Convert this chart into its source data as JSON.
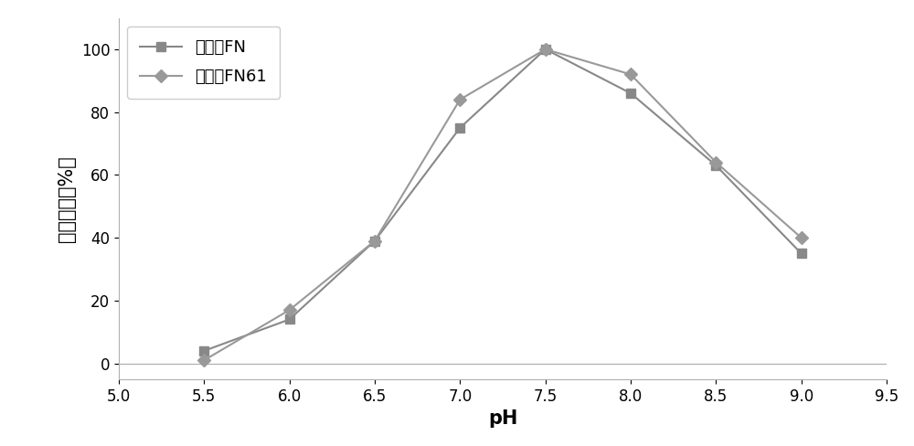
{
  "x": [
    5.5,
    6.0,
    6.5,
    7.0,
    7.5,
    8.0,
    8.5,
    9.0
  ],
  "fn_y": [
    4,
    14,
    39,
    75,
    100,
    86,
    63,
    35
  ],
  "fn61_y": [
    1,
    17,
    39,
    84,
    100,
    92,
    64,
    40
  ],
  "fn_label": "出发菌FN",
  "fn61_label": "突变菌FN61",
  "fn_color": "#888888",
  "fn61_color": "#999999",
  "fn_marker": "s",
  "fn61_marker": "D",
  "xlabel": "pH",
  "ylabel": "相对酶活（%）",
  "xlim": [
    5.0,
    9.5
  ],
  "ylim": [
    -5,
    110
  ],
  "xticks": [
    5.0,
    5.5,
    6.0,
    6.5,
    7.0,
    7.5,
    8.0,
    8.5,
    9.0,
    9.5
  ],
  "yticks": [
    0,
    20,
    40,
    60,
    80,
    100
  ],
  "background_color": "#ffffff",
  "legend_fontsize": 13,
  "axis_label_fontsize": 15,
  "tick_fontsize": 12
}
